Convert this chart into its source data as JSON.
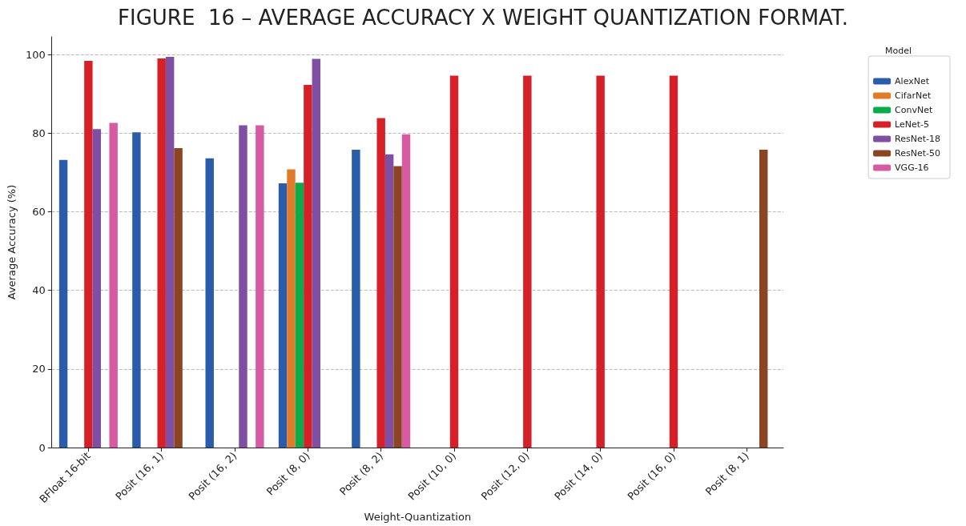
{
  "chart_data": {
    "type": "bar",
    "title": "FIGURE  16 – AVERAGE ACCURACY X WEIGHT QUANTIZATION FORMAT.",
    "xlabel": "Weight-Quantization",
    "ylabel": "Average Accuracy (%)",
    "legend_title": "Model",
    "categories": [
      "BFloat 16-bit",
      "Posit (16, 1)",
      "Posit (16, 2)",
      "Posit (8, 0)",
      "Posit (8, 2)",
      "Posit (10, 0)",
      "Posit (12, 0)",
      "Posit (14, 0)",
      "Posit (16, 0)",
      "Posit (8, 1)"
    ],
    "series": [
      {
        "name": "AlexNet",
        "color": "#2a5caa",
        "values": [
          73.2,
          80.2,
          73.6,
          67.2,
          75.8,
          null,
          null,
          null,
          null,
          null
        ]
      },
      {
        "name": "CifarNet",
        "color": "#e07b29",
        "values": [
          null,
          null,
          null,
          70.8,
          null,
          null,
          null,
          null,
          null,
          null
        ]
      },
      {
        "name": "ConvNet",
        "color": "#0aab4b",
        "values": [
          null,
          null,
          null,
          67.4,
          null,
          null,
          null,
          null,
          null,
          null
        ]
      },
      {
        "name": "LeNet-5",
        "color": "#d62027",
        "values": [
          98.4,
          99.0,
          null,
          92.3,
          83.8,
          94.6,
          94.6,
          94.6,
          94.6,
          null
        ]
      },
      {
        "name": "ResNet-18",
        "color": "#7e4fa3",
        "values": [
          81.0,
          99.4,
          82.0,
          98.9,
          74.6,
          null,
          null,
          null,
          null,
          null
        ]
      },
      {
        "name": "ResNet-50",
        "color": "#8a4522",
        "values": [
          null,
          76.2,
          null,
          null,
          71.6,
          null,
          null,
          null,
          null,
          75.8
        ]
      },
      {
        "name": "VGG-16",
        "color": "#d65ba3",
        "values": [
          82.6,
          null,
          82.0,
          null,
          79.7,
          null,
          null,
          null,
          null,
          null
        ]
      }
    ],
    "ylim": [
      0,
      104.5
    ],
    "yticks": [
      0,
      20,
      40,
      60,
      80,
      100
    ],
    "grid": "y",
    "legend": "top right"
  }
}
